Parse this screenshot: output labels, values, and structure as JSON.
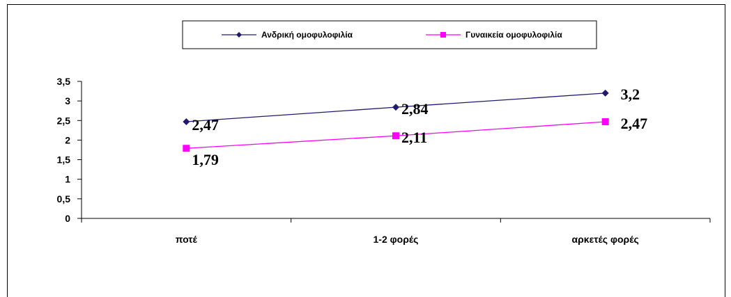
{
  "chart_data": {
    "type": "line",
    "categories": [
      "ποτέ",
      "1-2 φορές",
      "αρκετές φορές"
    ],
    "series": [
      {
        "name": "Ανδρική ομοφυλοφιλία",
        "values": [
          2.47,
          2.84,
          3.2
        ],
        "labels": [
          "2,47",
          "2,84",
          "3,2"
        ],
        "color": "#1F1A6E",
        "marker": "diamond"
      },
      {
        "name": "Γυναικεία ομοφυλοφιλία",
        "values": [
          1.79,
          2.11,
          2.47
        ],
        "labels": [
          "1,79",
          "2,11",
          "2,47"
        ],
        "color": "#FF00FF",
        "marker": "square"
      }
    ],
    "ylim": [
      0,
      3.5
    ],
    "yticks": [
      0,
      0.5,
      1,
      1.5,
      2,
      2.5,
      3,
      3.5
    ],
    "ytick_labels": [
      "0",
      "0,5",
      "1",
      "1,5",
      "2",
      "2,5",
      "3",
      "3,5"
    ],
    "grid": false,
    "legend_position": "top-center",
    "title": "",
    "xlabel": "",
    "ylabel": ""
  }
}
